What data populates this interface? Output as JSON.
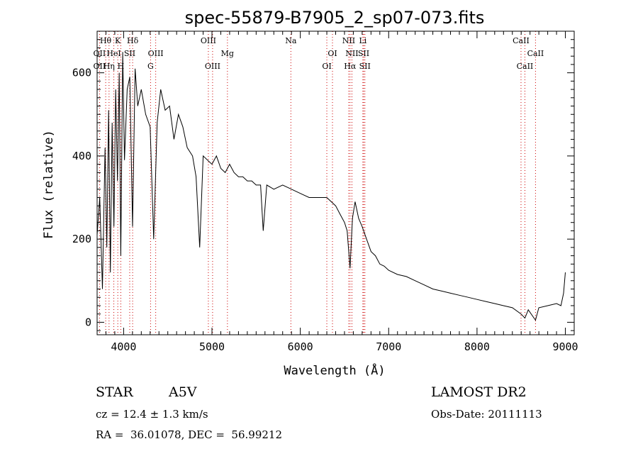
{
  "chart_data": {
    "type": "line",
    "title": "spec-55879-B7905_2_sp07-073.fits",
    "xlabel": "Wavelength (Å)",
    "ylabel": "Flux (relative)",
    "xlim": [
      3700,
      9100
    ],
    "ylim": [
      -30,
      700
    ],
    "xticks": [
      4000,
      5000,
      6000,
      7000,
      8000,
      9000
    ],
    "xtick_labels": [
      "4000",
      "5000",
      "6000",
      "7000",
      "8000",
      "9000"
    ],
    "yticks": [
      0,
      200,
      400,
      600
    ],
    "ytick_labels": [
      "0",
      "200",
      "400",
      "600"
    ],
    "grid": false,
    "series": [
      {
        "color": "#000000",
        "x": [
          3700,
          3730,
          3760,
          3790,
          3810,
          3830,
          3850,
          3870,
          3890,
          3910,
          3930,
          3950,
          3968,
          3990,
          4010,
          4040,
          4070,
          4101,
          4130,
          4160,
          4200,
          4250,
          4300,
          4340,
          4380,
          4420,
          4470,
          4520,
          4570,
          4620,
          4670,
          4720,
          4780,
          4820,
          4861,
          4900,
          4950,
          5000,
          5050,
          5100,
          5150,
          5200,
          5250,
          5300,
          5350,
          5400,
          5450,
          5500,
          5550,
          5580,
          5620,
          5700,
          5800,
          5900,
          6000,
          6100,
          6200,
          6300,
          6400,
          6450,
          6500,
          6530,
          6563,
          6590,
          6620,
          6660,
          6700,
          6750,
          6800,
          6850,
          6900,
          6950,
          7000,
          7100,
          7200,
          7300,
          7400,
          7500,
          7600,
          7700,
          7800,
          7900,
          8000,
          8100,
          8200,
          8300,
          8400,
          8498,
          8542,
          8580,
          8662,
          8700,
          8800,
          8900,
          8950,
          8980,
          9000
        ],
        "y": [
          210,
          300,
          80,
          420,
          180,
          510,
          120,
          480,
          230,
          560,
          340,
          600,
          160,
          650,
          390,
          560,
          590,
          230,
          610,
          520,
          560,
          500,
          470,
          200,
          480,
          560,
          510,
          520,
          440,
          500,
          470,
          420,
          400,
          350,
          180,
          400,
          390,
          380,
          400,
          370,
          360,
          380,
          360,
          350,
          350,
          340,
          340,
          330,
          330,
          220,
          330,
          320,
          330,
          320,
          310,
          300,
          300,
          300,
          280,
          260,
          240,
          220,
          130,
          250,
          290,
          250,
          230,
          200,
          170,
          160,
          140,
          135,
          125,
          115,
          110,
          100,
          90,
          80,
          75,
          70,
          65,
          60,
          55,
          50,
          45,
          40,
          35,
          20,
          10,
          30,
          5,
          35,
          40,
          45,
          40,
          70,
          120
        ]
      }
    ],
    "line_labels": [
      {
        "label": "Hθ",
        "row": 1,
        "x": 3797,
        "color": "#000000"
      },
      {
        "label": "K",
        "row": 1,
        "x": 3934,
        "color": "#000000"
      },
      {
        "label": "Hδ",
        "row": 1,
        "x": 4102,
        "color": "#000000"
      },
      {
        "label": "OIII",
        "row": 1,
        "x": 4959,
        "color": "#000000"
      },
      {
        "label": "Na",
        "row": 1,
        "x": 5893,
        "color": "#000000"
      },
      {
        "label": "NII",
        "row": 1,
        "x": 6548,
        "color": "#000000"
      },
      {
        "label": "Li",
        "row": 1,
        "x": 6708,
        "color": "#000000"
      },
      {
        "label": "CaII",
        "row": 1,
        "x": 8498,
        "color": "#000000"
      },
      {
        "label": "OII",
        "row": 2,
        "x": 3727,
        "color": "#000000"
      },
      {
        "label": "HeI",
        "row": 2,
        "x": 3889,
        "color": "#000000"
      },
      {
        "label": "SII",
        "row": 2,
        "x": 4069,
        "color": "#000000"
      },
      {
        "label": "OIII",
        "row": 2,
        "x": 4363,
        "color": "#000000"
      },
      {
        "label": "Mg",
        "row": 2,
        "x": 5175,
        "color": "#000000"
      },
      {
        "label": "OI",
        "row": 2,
        "x": 6364,
        "color": "#000000"
      },
      {
        "label": "NII",
        "row": 2,
        "x": 6584,
        "color": "#000000"
      },
      {
        "label": "SII",
        "row": 2,
        "x": 6717,
        "color": "#000000"
      },
      {
        "label": "CaII",
        "row": 2,
        "x": 8662,
        "color": "#000000"
      },
      {
        "label": "OII",
        "row": 3,
        "x": 3727,
        "color": "#000000"
      },
      {
        "label": "Hη",
        "row": 3,
        "x": 3835,
        "color": "#000000"
      },
      {
        "label": "H",
        "row": 3,
        "x": 3968,
        "color": "#000000"
      },
      {
        "label": "G",
        "row": 3,
        "x": 4305,
        "color": "#000000"
      },
      {
        "label": "OIII",
        "row": 3,
        "x": 5007,
        "color": "#000000"
      },
      {
        "label": "OI",
        "row": 3,
        "x": 6300,
        "color": "#000000"
      },
      {
        "label": "Hα",
        "row": 3,
        "x": 6563,
        "color": "#000000"
      },
      {
        "label": "SII",
        "row": 3,
        "x": 6731,
        "color": "#000000"
      },
      {
        "label": "CaII",
        "row": 3,
        "x": 8542,
        "color": "#000000"
      }
    ],
    "line_markers": [
      {
        "x": 3727,
        "color": "#cc0000"
      },
      {
        "x": 3797,
        "color": "#cc0000"
      },
      {
        "x": 3835,
        "color": "#cc0000"
      },
      {
        "x": 3889,
        "color": "#cc0000"
      },
      {
        "x": 3934,
        "color": "#cc0000"
      },
      {
        "x": 3968,
        "color": "#cc0000"
      },
      {
        "x": 4069,
        "color": "#cc0000"
      },
      {
        "x": 4102,
        "color": "#cc0000"
      },
      {
        "x": 4305,
        "color": "#cc0000"
      },
      {
        "x": 4363,
        "color": "#cc0000"
      },
      {
        "x": 4959,
        "color": "#cc0000"
      },
      {
        "x": 5007,
        "color": "#cc0000"
      },
      {
        "x": 5175,
        "color": "#cc0000"
      },
      {
        "x": 5893,
        "color": "#cc0000"
      },
      {
        "x": 6300,
        "color": "#cc0000"
      },
      {
        "x": 6364,
        "color": "#cc0000"
      },
      {
        "x": 6548,
        "color": "#cc0000"
      },
      {
        "x": 6563,
        "color": "#cc0000"
      },
      {
        "x": 6584,
        "color": "#cc0000"
      },
      {
        "x": 6708,
        "color": "#cc0000"
      },
      {
        "x": 6717,
        "color": "#cc0000"
      },
      {
        "x": 6731,
        "color": "#cc0000"
      },
      {
        "x": 8498,
        "color": "#cc0000"
      },
      {
        "x": 8542,
        "color": "#cc0000"
      },
      {
        "x": 8662,
        "color": "#cc0000"
      }
    ]
  },
  "info": {
    "object_class": "STAR",
    "subclass": "A5V",
    "survey": "LAMOST DR2",
    "velocity": "cz = 12.4 ± 1.3 km/s",
    "obs_date": "Obs-Date: 20111113",
    "coords": "RA =  36.01078, DEC =  56.99212"
  }
}
